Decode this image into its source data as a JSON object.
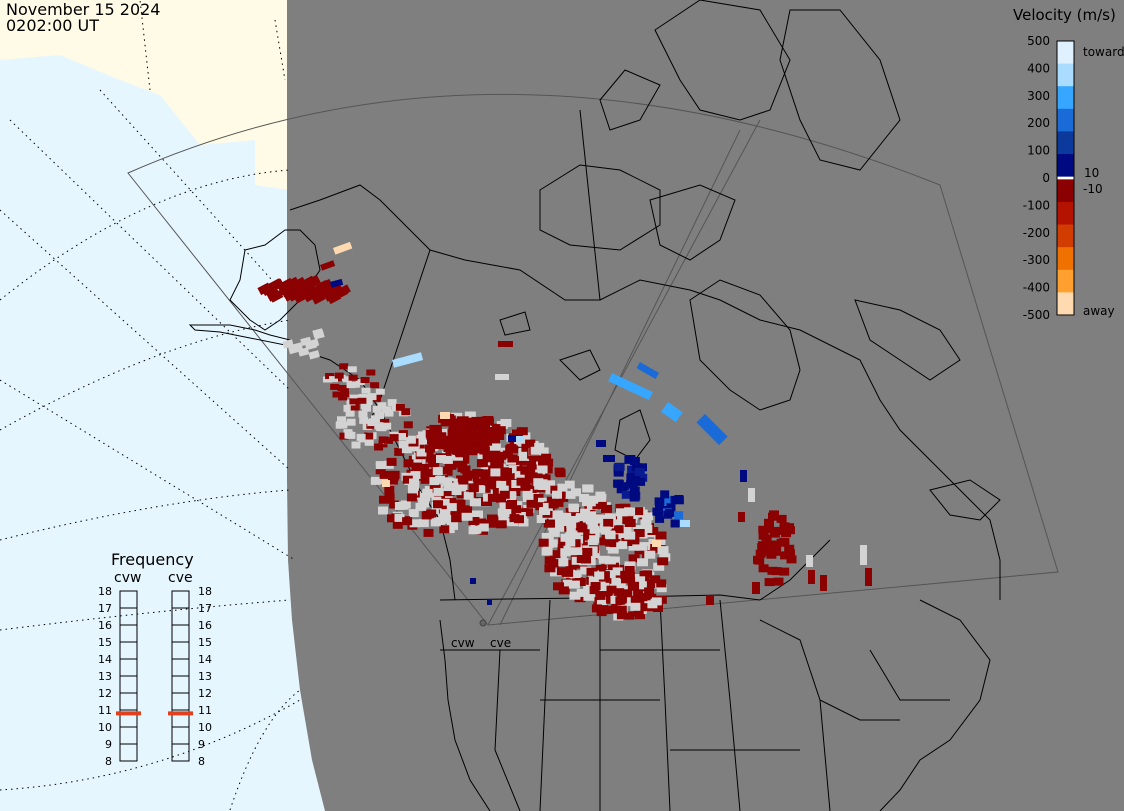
{
  "header": {
    "date": "November 15 2024",
    "time": "0202:00 UT"
  },
  "colorbar": {
    "title": "Velocity (m/s)",
    "ticks": [
      "500",
      "400",
      "300",
      "200",
      "100",
      "0",
      "-100",
      "-200",
      "-300",
      "-400",
      "-500"
    ],
    "extra_ticks": [
      "10",
      "-10"
    ],
    "top_label": "toward",
    "bottom_label": "away",
    "colors": [
      "#dff0ff",
      "#a9dcff",
      "#36a6ff",
      "#1a6ad8",
      "#0b3a9c",
      "#000a80",
      "#ffffff",
      "#8b0000",
      "#b31300",
      "#d13c00",
      "#ef7200",
      "#ffa030",
      "#ffd9b0"
    ]
  },
  "frequency": {
    "title": "Frequency",
    "radars": [
      "cvw",
      "cve"
    ],
    "scale": [
      "18",
      "17",
      "16",
      "15",
      "14",
      "13",
      "12",
      "11",
      "10",
      "9",
      "8"
    ],
    "values_mhz": [
      10.8,
      10.8
    ]
  },
  "map": {
    "radar_site_labels": [
      "cvw",
      "cve"
    ],
    "colors": {
      "background_ocean": "#e6f6ff",
      "land_outside": "#fffbe6",
      "plot_field": "#7f7f7f",
      "no_scatter_grey": "#d3d3d3",
      "outline": "#000000"
    }
  }
}
